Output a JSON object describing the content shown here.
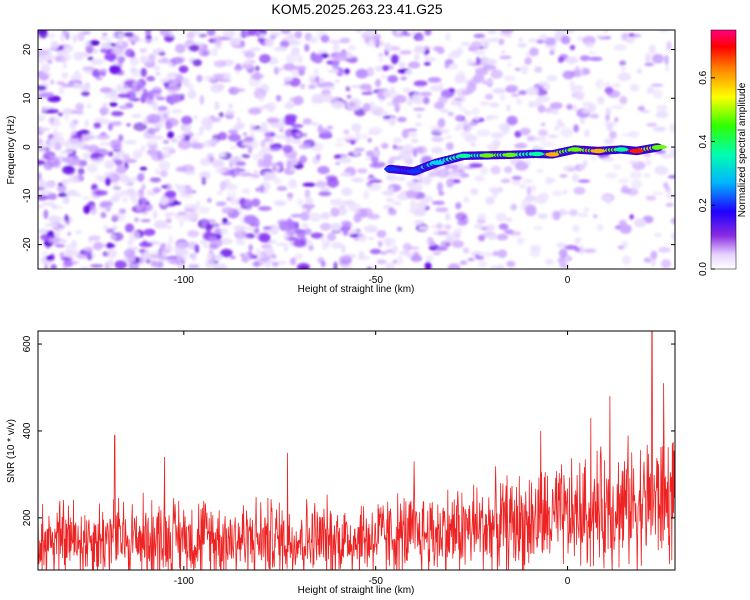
{
  "title": "KOM5.2025.263.23.41.G25",
  "colors": {
    "background": "#ffffff",
    "snr_line": "#ee2222",
    "noise_purple": "#7a1cf0"
  },
  "chart_data": [
    {
      "type": "heatmap",
      "title": "KOM5.2025.263.23.41.G25",
      "xlabel": "Height of straight line (km)",
      "ylabel": "Frequency (Hz)",
      "xlim": [
        -138,
        28
      ],
      "ylim": [
        -25,
        24
      ],
      "xticks": [
        -100,
        -50,
        0
      ],
      "yticks": [
        -20,
        -10,
        0,
        10,
        20
      ],
      "colorbar": {
        "label": "Normalized spectral amplitude",
        "range": [
          0.0,
          0.75
        ],
        "ticks": [
          "0.0",
          "0.2",
          "0.4",
          "0.6"
        ],
        "tick_values": [
          0.0,
          0.2,
          0.4,
          0.6
        ]
      },
      "signal_track": {
        "description_points": [
          {
            "x": -46,
            "y": -4.5,
            "amp": 0.25
          },
          {
            "x": -40,
            "y": -5,
            "amp": 0.2
          },
          {
            "x": -34,
            "y": -3.2,
            "amp": 0.3
          },
          {
            "x": -27,
            "y": -1.8,
            "amp": 0.45
          },
          {
            "x": -21,
            "y": -1.7,
            "amp": 0.5
          },
          {
            "x": -15,
            "y": -1.6,
            "amp": 0.5
          },
          {
            "x": -8,
            "y": -1.4,
            "amp": 0.4
          },
          {
            "x": -4,
            "y": -1.5,
            "amp": 0.6
          },
          {
            "x": 2,
            "y": -0.5,
            "amp": 0.5
          },
          {
            "x": 8,
            "y": -0.8,
            "amp": 0.65
          },
          {
            "x": 14,
            "y": -0.5,
            "amp": 0.45
          },
          {
            "x": 18,
            "y": -0.8,
            "amp": 0.72
          },
          {
            "x": 24,
            "y": 0,
            "amp": 0.5
          }
        ]
      }
    },
    {
      "type": "line",
      "xlabel": "Height of straight line (km)",
      "ylabel": "SNR (10 * v/v)",
      "xlim": [
        -138,
        28
      ],
      "ylim": [
        80,
        630
      ],
      "xticks": [
        -100,
        -50,
        0
      ],
      "yticks": [
        200,
        400,
        600
      ],
      "series": [
        {
          "name": "SNR",
          "trend": [
            {
              "x": -138,
              "y": 150
            },
            {
              "x": -100,
              "y": 155
            },
            {
              "x": -60,
              "y": 150
            },
            {
              "x": -40,
              "y": 160
            },
            {
              "x": -20,
              "y": 180
            },
            {
              "x": 0,
              "y": 200
            },
            {
              "x": 15,
              "y": 230
            },
            {
              "x": 28,
              "y": 245
            }
          ],
          "spikes": [
            {
              "x": -118,
              "y": 390
            },
            {
              "x": -105,
              "y": 340
            },
            {
              "x": -73,
              "y": 350
            },
            {
              "x": -40,
              "y": 330
            },
            {
              "x": -7,
              "y": 400
            },
            {
              "x": 6,
              "y": 430
            },
            {
              "x": 11,
              "y": 480
            },
            {
              "x": 22,
              "y": 630
            },
            {
              "x": 25,
              "y": 510
            }
          ]
        }
      ]
    }
  ]
}
